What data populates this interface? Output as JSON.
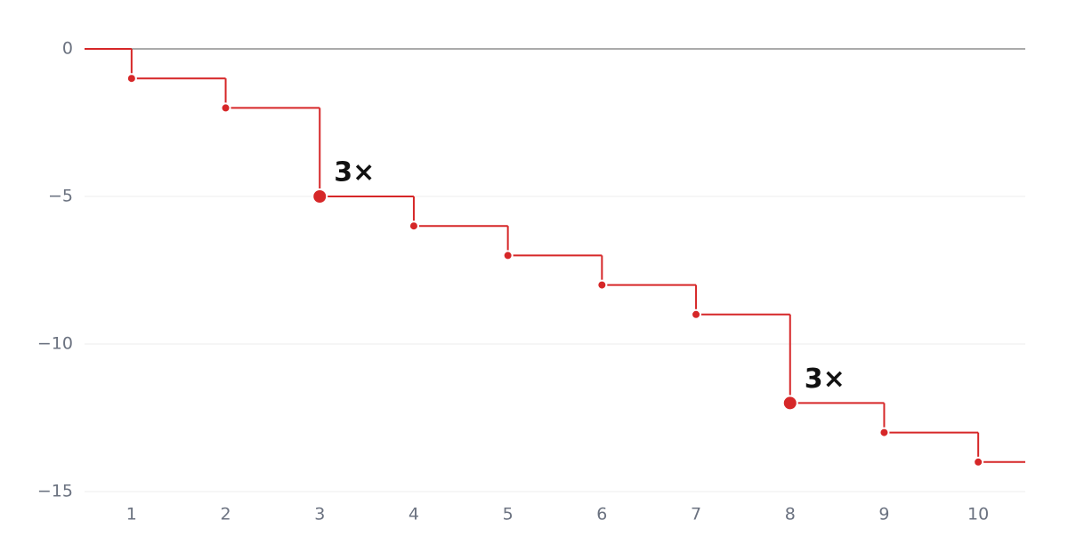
{
  "chart_data": {
    "type": "step",
    "x": [
      1,
      2,
      3,
      4,
      5,
      6,
      7,
      8,
      9,
      10
    ],
    "values": [
      -1,
      -2,
      -5,
      -6,
      -7,
      -8,
      -9,
      -12,
      -13,
      -14
    ],
    "color": "#d62728",
    "xlim": [
      0.5,
      10.5
    ],
    "xticks": [
      1,
      2,
      3,
      4,
      5,
      6,
      7,
      8,
      9,
      10
    ],
    "ylim": [
      -15,
      0
    ],
    "yticks": [
      {
        "value": 0,
        "label": "0"
      },
      {
        "value": -5,
        "label": "−5"
      },
      {
        "value": -10,
        "label": "−10"
      },
      {
        "value": -15,
        "label": "−15"
      }
    ],
    "grid": true,
    "annotations": [
      {
        "x": 3,
        "text": "3×"
      },
      {
        "x": 8,
        "text": "3×"
      }
    ]
  }
}
